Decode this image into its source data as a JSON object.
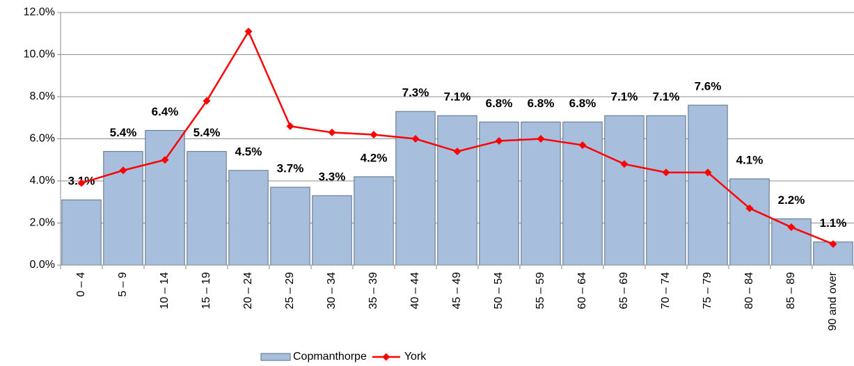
{
  "chart_data": {
    "type": "bar",
    "categories": [
      "0 – 4",
      "5 – 9",
      "10 – 14",
      "15 – 19",
      "20 – 24",
      "25 – 29",
      "30 – 34",
      "35 – 39",
      "40 – 44",
      "45 – 49",
      "50 – 54",
      "55 – 59",
      "60 – 64",
      "65 – 69",
      "70 – 74",
      "75 – 79",
      "80 – 84",
      "85 – 89",
      "90 and over"
    ],
    "series": [
      {
        "name": "Copmanthorpe",
        "type": "bar",
        "color": "#a7bfdd",
        "values": [
          3.1,
          5.4,
          6.4,
          5.4,
          4.5,
          3.7,
          3.3,
          4.2,
          7.3,
          7.1,
          6.8,
          6.8,
          6.8,
          7.1,
          7.1,
          7.6,
          4.1,
          2.2,
          1.1
        ],
        "value_labels": [
          "3.1%",
          "5.4%",
          "6.4%",
          "5.4%",
          "4.5%",
          "3.7%",
          "3.3%",
          "4.2%",
          "7.3%",
          "7.1%",
          "6.8%",
          "6.8%",
          "6.8%",
          "7.1%",
          "7.1%",
          "7.6%",
          "4.1%",
          "2.2%",
          "1.1%"
        ]
      },
      {
        "name": "York",
        "type": "line",
        "color": "#ff0000",
        "values": [
          3.9,
          4.5,
          5.0,
          7.8,
          11.1,
          6.6,
          6.3,
          6.2,
          6.0,
          5.4,
          5.9,
          6.0,
          5.7,
          4.8,
          4.4,
          4.4,
          2.7,
          1.8,
          1.0
        ]
      }
    ],
    "ylim": [
      0,
      12
    ],
    "yticks": [
      {
        "value": 0,
        "label": "0.0%"
      },
      {
        "value": 2,
        "label": "2.0%"
      },
      {
        "value": 4,
        "label": "4.0%"
      },
      {
        "value": 6,
        "label": "6.0%"
      },
      {
        "value": 8,
        "label": "8.0%"
      },
      {
        "value": 10,
        "label": "10.0%"
      },
      {
        "value": 12,
        "label": "12.0%"
      }
    ],
    "grid": true,
    "legend": "bottom"
  }
}
